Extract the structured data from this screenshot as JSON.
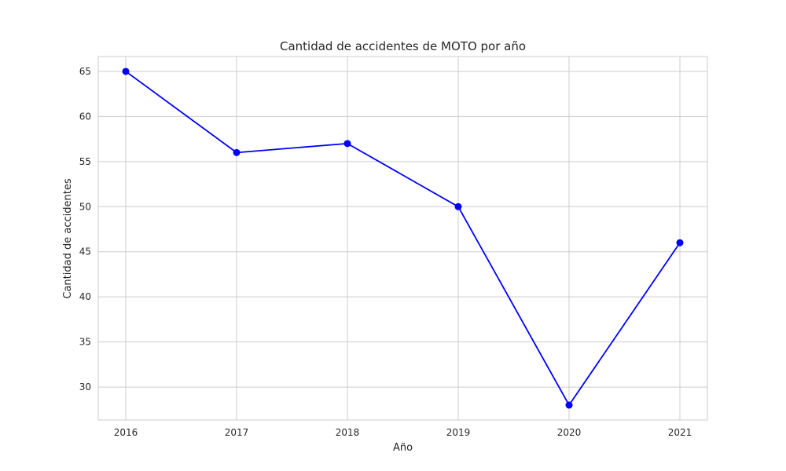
{
  "chart_data": {
    "type": "line",
    "title": "Cantidad de accidentes de MOTO por año",
    "xlabel": "Año",
    "ylabel": "Cantidad de accidentes",
    "x": [
      "2016",
      "2017",
      "2018",
      "2019",
      "2020",
      "2021"
    ],
    "series": [
      {
        "values": [
          65,
          56,
          57,
          50,
          28,
          46
        ],
        "color": "#0000ff",
        "marker": "circle"
      }
    ],
    "yticks": [
      30,
      35,
      40,
      45,
      50,
      55,
      60,
      65
    ],
    "ylim": [
      26.35,
      66.65
    ],
    "grid": true,
    "legend": "none"
  }
}
